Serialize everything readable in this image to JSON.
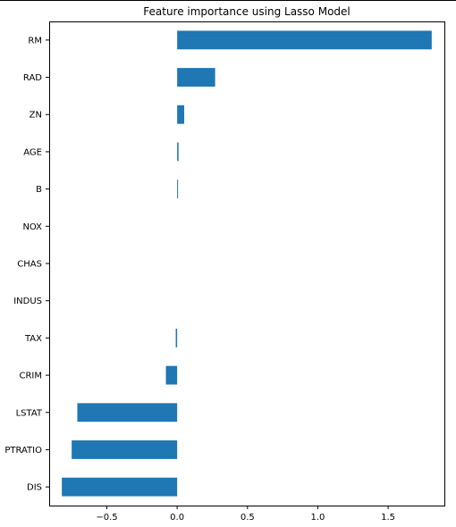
{
  "chart_data": {
    "type": "bar",
    "orientation": "horizontal",
    "title": "Feature importance using Lasso Model",
    "xlabel": "",
    "ylabel": "",
    "categories": [
      "RM",
      "RAD",
      "ZN",
      "AGE",
      "B",
      "NOX",
      "CHAS",
      "INDUS",
      "TAX",
      "CRIM",
      "LSTAT",
      "PTRATIO",
      "DIS"
    ],
    "values": [
      1.81,
      0.27,
      0.05,
      0.01,
      0.005,
      0.0,
      0.0,
      0.0,
      -0.01,
      -0.08,
      -0.71,
      -0.75,
      -0.82
    ],
    "xlim": [
      -0.91,
      1.9
    ],
    "x_ticks": [
      -0.5,
      0.0,
      0.5,
      1.0,
      1.5
    ],
    "x_tick_labels": [
      "−0.5",
      "0.0",
      "0.5",
      "1.0",
      "1.5"
    ],
    "grid": false,
    "legend": "none",
    "bar_color": "#1f77b4"
  }
}
